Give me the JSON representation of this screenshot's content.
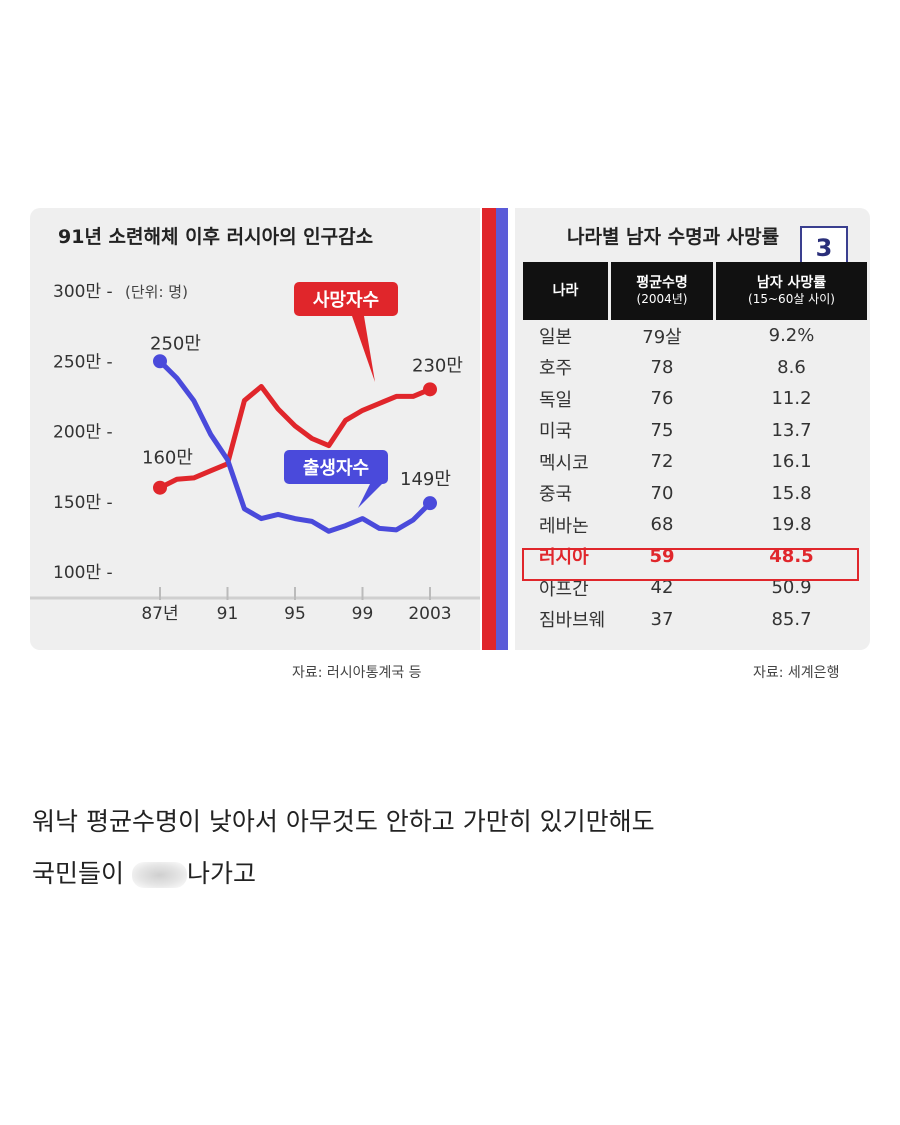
{
  "chart_data": {
    "type": "line",
    "title": "91년 소련해체 이후 러시아의 인구감소",
    "unit_note": "(단위: 명)",
    "y_ticks": [
      "300만",
      "250만",
      "200만",
      "150만",
      "100만"
    ],
    "y_tick_values": [
      300,
      250,
      200,
      150,
      100
    ],
    "x_ticks": [
      "87년",
      "91",
      "95",
      "99",
      "2003"
    ],
    "x_tick_values": [
      1987,
      1991,
      1995,
      1999,
      2003
    ],
    "xlim": [
      1986,
      2005
    ],
    "ylim": [
      90,
      300
    ],
    "series": [
      {
        "name": "사망자수",
        "color": "#e0262b",
        "x": [
          1987,
          1988,
          1989,
          1990,
          1991,
          1992,
          1993,
          1994,
          1995,
          1996,
          1997,
          1998,
          1999,
          2000,
          2001,
          2002,
          2003
        ],
        "y": [
          160,
          166,
          167,
          172,
          177,
          222,
          232,
          216,
          204,
          195,
          190,
          208,
          215,
          220,
          225,
          225,
          230
        ],
        "start_label": "160만",
        "end_label": "230만"
      },
      {
        "name": "출생자수",
        "color": "#4a4adb",
        "x": [
          1987,
          1988,
          1989,
          1990,
          1991,
          1992,
          1993,
          1994,
          1995,
          1996,
          1997,
          1998,
          1999,
          2000,
          2001,
          2002,
          2003
        ],
        "y": [
          250,
          238,
          222,
          198,
          180,
          145,
          138,
          141,
          138,
          136,
          129,
          133,
          138,
          131,
          130,
          137,
          149
        ],
        "start_label": "250만",
        "end_label": "149만"
      }
    ]
  },
  "chart_source": "자료: 러시아통계국 등",
  "table": {
    "title": "나라별 남자 수명과 사망률",
    "headers": [
      {
        "main": "나라",
        "sub": ""
      },
      {
        "main": "평균수명",
        "sub": "(2004년)"
      },
      {
        "main": "남자 사망률",
        "sub": "(15~60살 사이)"
      }
    ],
    "rows": [
      [
        "일본",
        "79살",
        "9.2%"
      ],
      [
        "호주",
        "78",
        "8.6"
      ],
      [
        "독일",
        "76",
        "11.2"
      ],
      [
        "미국",
        "75",
        "13.7"
      ],
      [
        "멕시코",
        "72",
        "16.1"
      ],
      [
        "중국",
        "70",
        "15.8"
      ],
      [
        "레바논",
        "68",
        "19.8"
      ],
      [
        "러시아",
        "59",
        "48.5"
      ],
      [
        "아프간",
        "42",
        "50.9"
      ],
      [
        "짐바브웨",
        "37",
        "85.7"
      ]
    ],
    "highlight_row": "러시아",
    "source": "자료: 세계은행",
    "page_badge": "3"
  },
  "caption": {
    "line1": "워낙 평균수명이 낮아서 아무것도 안하고 가만히 있기만해도",
    "line2_before": "국민들이 ",
    "line2_after": "나가고"
  }
}
